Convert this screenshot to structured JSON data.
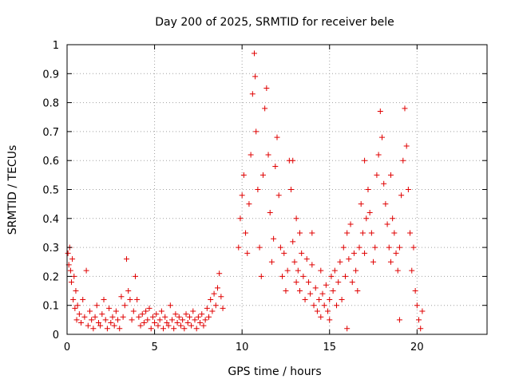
{
  "chart_data": {
    "type": "scatter",
    "title": "Day 200 of 2025, SRMTID for receiver bele",
    "xlabel": "GPS time / hours",
    "ylabel": "SRMTID / TECUs",
    "xlim": [
      0,
      24
    ],
    "ylim": [
      0,
      1
    ],
    "xticks": [
      0,
      5,
      10,
      15,
      20
    ],
    "yticks": [
      0,
      0.1,
      0.2,
      0.3,
      0.4,
      0.5,
      0.6,
      0.7,
      0.8,
      0.9,
      1
    ],
    "xtick_labels": [
      "0",
      "5",
      "10",
      "15",
      "20"
    ],
    "ytick_labels": [
      "0",
      "0.1",
      "0.2",
      "0.3",
      "0.4",
      "0.5",
      "0.6",
      "0.7",
      "0.8",
      "0.9",
      "1"
    ],
    "grid": true,
    "marker": "+",
    "color": "#e00000",
    "series": [
      {
        "name": "SRMTID",
        "points": [
          [
            0.05,
            0.28
          ],
          [
            0.1,
            0.24
          ],
          [
            0.15,
            0.3
          ],
          [
            0.2,
            0.22
          ],
          [
            0.25,
            0.18
          ],
          [
            0.3,
            0.26
          ],
          [
            0.35,
            0.12
          ],
          [
            0.4,
            0.2
          ],
          [
            0.45,
            0.09
          ],
          [
            0.5,
            0.15
          ],
          [
            0.55,
            0.05
          ],
          [
            0.6,
            0.1
          ],
          [
            0.7,
            0.07
          ],
          [
            0.8,
            0.04
          ],
          [
            0.9,
            0.12
          ],
          [
            1.0,
            0.06
          ],
          [
            1.1,
            0.22
          ],
          [
            1.2,
            0.03
          ],
          [
            1.3,
            0.08
          ],
          [
            1.4,
            0.05
          ],
          [
            1.5,
            0.02
          ],
          [
            1.6,
            0.06
          ],
          [
            1.7,
            0.1
          ],
          [
            1.8,
            0.04
          ],
          [
            1.9,
            0.03
          ],
          [
            2.0,
            0.07
          ],
          [
            2.1,
            0.12
          ],
          [
            2.2,
            0.05
          ],
          [
            2.3,
            0.02
          ],
          [
            2.4,
            0.09
          ],
          [
            2.5,
            0.04
          ],
          [
            2.6,
            0.06
          ],
          [
            2.7,
            0.03
          ],
          [
            2.8,
            0.08
          ],
          [
            2.9,
            0.05
          ],
          [
            3.0,
            0.02
          ],
          [
            3.1,
            0.13
          ],
          [
            3.2,
            0.06
          ],
          [
            3.3,
            0.1
          ],
          [
            3.4,
            0.26
          ],
          [
            3.5,
            0.15
          ],
          [
            3.6,
            0.12
          ],
          [
            3.7,
            0.05
          ],
          [
            3.8,
            0.08
          ],
          [
            3.9,
            0.2
          ],
          [
            4.0,
            0.12
          ],
          [
            4.1,
            0.06
          ],
          [
            4.2,
            0.03
          ],
          [
            4.3,
            0.07
          ],
          [
            4.4,
            0.04
          ],
          [
            4.5,
            0.08
          ],
          [
            4.6,
            0.05
          ],
          [
            4.7,
            0.09
          ],
          [
            4.8,
            0.02
          ],
          [
            4.9,
            0.06
          ],
          [
            5.0,
            0.04
          ],
          [
            5.1,
            0.07
          ],
          [
            5.2,
            0.03
          ],
          [
            5.3,
            0.05
          ],
          [
            5.4,
            0.08
          ],
          [
            5.5,
            0.02
          ],
          [
            5.6,
            0.06
          ],
          [
            5.7,
            0.04
          ],
          [
            5.8,
            0.03
          ],
          [
            5.9,
            0.1
          ],
          [
            6.0,
            0.05
          ],
          [
            6.1,
            0.02
          ],
          [
            6.2,
            0.07
          ],
          [
            6.3,
            0.04
          ],
          [
            6.4,
            0.06
          ],
          [
            6.5,
            0.03
          ],
          [
            6.6,
            0.05
          ],
          [
            6.7,
            0.02
          ],
          [
            6.8,
            0.07
          ],
          [
            6.9,
            0.04
          ],
          [
            7.0,
            0.06
          ],
          [
            7.1,
            0.03
          ],
          [
            7.2,
            0.08
          ],
          [
            7.3,
            0.05
          ],
          [
            7.4,
            0.02
          ],
          [
            7.5,
            0.06
          ],
          [
            7.6,
            0.04
          ],
          [
            7.7,
            0.07
          ],
          [
            7.8,
            0.03
          ],
          [
            7.9,
            0.05
          ],
          [
            8.0,
            0.09
          ],
          [
            8.1,
            0.06
          ],
          [
            8.2,
            0.12
          ],
          [
            8.3,
            0.08
          ],
          [
            8.4,
            0.14
          ],
          [
            8.5,
            0.1
          ],
          [
            8.6,
            0.16
          ],
          [
            8.7,
            0.21
          ],
          [
            8.8,
            0.13
          ],
          [
            8.9,
            0.09
          ],
          [
            9.8,
            0.3
          ],
          [
            9.9,
            0.4
          ],
          [
            10.0,
            0.48
          ],
          [
            10.1,
            0.55
          ],
          [
            10.2,
            0.35
          ],
          [
            10.3,
            0.28
          ],
          [
            10.4,
            0.45
          ],
          [
            10.5,
            0.62
          ],
          [
            10.6,
            0.83
          ],
          [
            10.7,
            0.97
          ],
          [
            10.75,
            0.89
          ],
          [
            10.8,
            0.7
          ],
          [
            10.9,
            0.5
          ],
          [
            11.0,
            0.3
          ],
          [
            11.1,
            0.2
          ],
          [
            11.2,
            0.55
          ],
          [
            11.3,
            0.78
          ],
          [
            11.4,
            0.85
          ],
          [
            11.5,
            0.62
          ],
          [
            11.6,
            0.42
          ],
          [
            11.7,
            0.25
          ],
          [
            11.8,
            0.33
          ],
          [
            11.9,
            0.58
          ],
          [
            12.0,
            0.68
          ],
          [
            12.1,
            0.48
          ],
          [
            12.2,
            0.3
          ],
          [
            12.3,
            0.2
          ],
          [
            12.4,
            0.28
          ],
          [
            12.5,
            0.15
          ],
          [
            12.6,
            0.22
          ],
          [
            12.7,
            0.6
          ],
          [
            12.8,
            0.5
          ],
          [
            12.9,
            0.32
          ],
          [
            13.0,
            0.25
          ],
          [
            13.1,
            0.18
          ],
          [
            13.2,
            0.22
          ],
          [
            13.3,
            0.15
          ],
          [
            13.4,
            0.28
          ],
          [
            13.5,
            0.2
          ],
          [
            13.6,
            0.12
          ],
          [
            13.7,
            0.26
          ],
          [
            13.8,
            0.18
          ],
          [
            13.9,
            0.14
          ],
          [
            14.0,
            0.24
          ],
          [
            14.1,
            0.1
          ],
          [
            14.2,
            0.16
          ],
          [
            14.3,
            0.08
          ],
          [
            14.4,
            0.12
          ],
          [
            14.5,
            0.06
          ],
          [
            14.6,
            0.14
          ],
          [
            14.7,
            0.1
          ],
          [
            14.8,
            0.17
          ],
          [
            14.9,
            0.08
          ],
          [
            15.0,
            0.12
          ],
          [
            15.1,
            0.2
          ],
          [
            15.2,
            0.15
          ],
          [
            15.3,
            0.22
          ],
          [
            15.4,
            0.1
          ],
          [
            15.5,
            0.18
          ],
          [
            15.6,
            0.25
          ],
          [
            15.7,
            0.12
          ],
          [
            15.8,
            0.3
          ],
          [
            15.9,
            0.2
          ],
          [
            16.0,
            0.35
          ],
          [
            16.1,
            0.26
          ],
          [
            16.2,
            0.38
          ],
          [
            16.3,
            0.18
          ],
          [
            16.4,
            0.28
          ],
          [
            16.5,
            0.22
          ],
          [
            16.6,
            0.15
          ],
          [
            16.7,
            0.3
          ],
          [
            16.8,
            0.45
          ],
          [
            16.9,
            0.35
          ],
          [
            17.0,
            0.28
          ],
          [
            17.1,
            0.4
          ],
          [
            17.2,
            0.5
          ],
          [
            17.3,
            0.42
          ],
          [
            17.4,
            0.35
          ],
          [
            17.5,
            0.25
          ],
          [
            17.6,
            0.3
          ],
          [
            17.7,
            0.55
          ],
          [
            17.8,
            0.62
          ],
          [
            17.9,
            0.77
          ],
          [
            18.0,
            0.68
          ],
          [
            18.1,
            0.52
          ],
          [
            18.2,
            0.45
          ],
          [
            18.3,
            0.38
          ],
          [
            18.4,
            0.3
          ],
          [
            18.5,
            0.25
          ],
          [
            18.6,
            0.4
          ],
          [
            18.7,
            0.35
          ],
          [
            18.8,
            0.28
          ],
          [
            18.9,
            0.22
          ],
          [
            19.0,
            0.3
          ],
          [
            19.1,
            0.48
          ],
          [
            19.2,
            0.6
          ],
          [
            19.3,
            0.78
          ],
          [
            19.4,
            0.65
          ],
          [
            19.5,
            0.5
          ],
          [
            19.6,
            0.35
          ],
          [
            19.7,
            0.22
          ],
          [
            19.8,
            0.3
          ],
          [
            19.9,
            0.15
          ],
          [
            20.0,
            0.1
          ],
          [
            20.1,
            0.05
          ],
          [
            20.2,
            0.02
          ],
          [
            20.3,
            0.08
          ],
          [
            12.9,
            0.6
          ],
          [
            13.1,
            0.4
          ],
          [
            13.3,
            0.35
          ],
          [
            14.0,
            0.35
          ],
          [
            14.5,
            0.22
          ],
          [
            15.0,
            0.05
          ],
          [
            16.0,
            0.02
          ],
          [
            17.0,
            0.6
          ],
          [
            18.5,
            0.55
          ],
          [
            19.0,
            0.05
          ]
        ]
      }
    ]
  }
}
